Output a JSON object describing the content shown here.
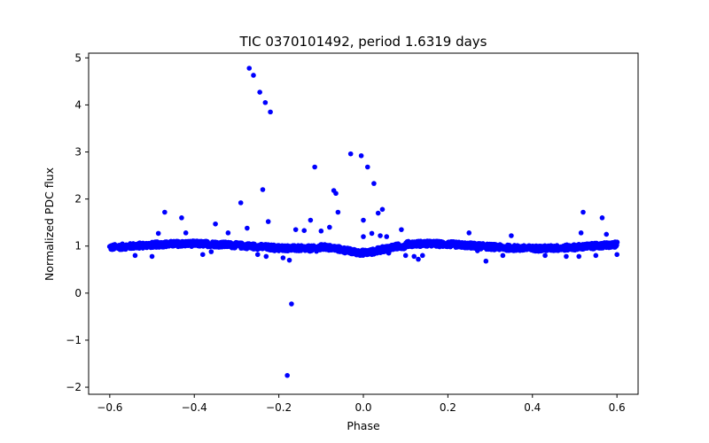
{
  "chart_data": {
    "type": "scatter",
    "title": "TIC 0370101492, period 1.6319 days",
    "xlabel": "Phase",
    "ylabel": "Normalized PDC flux",
    "xlim": [
      -0.65,
      0.65
    ],
    "ylim": [
      -2.15,
      5.1
    ],
    "xticks": [
      -0.6,
      -0.4,
      -0.2,
      0.0,
      0.2,
      0.4,
      0.6
    ],
    "xtick_labels": [
      "−0.6",
      "−0.4",
      "−0.2",
      "0.0",
      "0.2",
      "0.4",
      "0.6"
    ],
    "yticks": [
      -2,
      -1,
      0,
      1,
      2,
      3,
      4,
      5
    ],
    "ytick_labels": [
      "−2",
      "−1",
      "0",
      "1",
      "2",
      "3",
      "4",
      "5"
    ],
    "grid": false,
    "marker_color": "#0000ff",
    "band": {
      "description": "dense series of points spanning the full phase range",
      "x_range": [
        -0.6,
        0.6
      ],
      "step": 0.002,
      "baseline": 1.0,
      "dip_center": 0.0,
      "dip_depth": 0.14,
      "dip_width": 0.06
    },
    "outliers": {
      "x": [
        -0.27,
        -0.26,
        -0.245,
        -0.232,
        -0.22,
        -0.21,
        -0.29,
        -0.238,
        -0.225,
        -0.275,
        -0.47,
        -0.43,
        -0.42,
        -0.35,
        -0.32,
        -0.485,
        -0.18,
        -0.17,
        -0.115,
        -0.125,
        -0.07,
        -0.065,
        -0.06,
        -0.08,
        -0.1,
        -0.03,
        -0.005,
        0.01,
        0.025,
        0.035,
        0.045,
        0.0,
        0.04,
        0.02,
        0.055,
        0.09,
        -0.23,
        -0.25,
        -0.19,
        -0.175,
        -0.38,
        -0.5,
        -0.54,
        -0.36,
        0.12,
        0.13,
        0.14,
        0.25,
        0.29,
        0.33,
        0.35,
        0.27,
        0.52,
        0.515,
        0.565,
        0.575,
        0.6,
        0.43,
        0.48,
        0.51,
        0.55,
        -0.16,
        -0.14,
        0.06,
        0.1,
        0.0,
        -0.2
      ],
      "y": [
        4.78,
        4.63,
        4.27,
        4.05,
        3.85,
        0.9,
        1.92,
        2.2,
        1.52,
        1.38,
        1.72,
        1.6,
        1.28,
        1.47,
        1.28,
        1.27,
        -1.75,
        -0.23,
        2.68,
        1.55,
        2.18,
        2.12,
        1.72,
        1.4,
        1.32,
        2.96,
        2.92,
        2.68,
        2.33,
        1.7,
        1.78,
        1.55,
        1.22,
        1.27,
        1.2,
        1.35,
        0.78,
        0.82,
        0.75,
        0.7,
        0.82,
        0.78,
        0.8,
        0.88,
        0.78,
        0.72,
        0.8,
        1.28,
        0.68,
        0.8,
        1.22,
        0.9,
        1.72,
        1.28,
        1.6,
        1.25,
        0.82,
        0.8,
        0.78,
        0.78,
        0.8,
        1.35,
        1.33,
        0.85,
        0.8,
        1.2,
        0.9
      ]
    }
  }
}
